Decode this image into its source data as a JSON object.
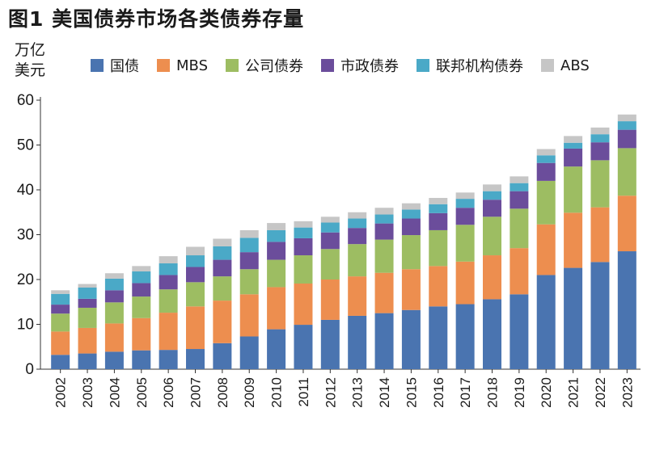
{
  "header": {
    "title": "图1  美国债券市场各类债券存量",
    "unit_line1": "万亿",
    "unit_line2": "美元"
  },
  "colors": {
    "国债": "#4a74b0",
    "MBS": "#ed8e4f",
    "公司债券": "#9dbd62",
    "市政债券": "#6b4d9b",
    "联邦机构债券": "#4aa9c7",
    "ABS": "#c6c6c6"
  },
  "chart_data": {
    "type": "bar",
    "stacked": true,
    "title": "图1  美国债券市场各类债券存量",
    "ylabel": "万亿美元",
    "ylim": [
      0,
      60
    ],
    "yticks": [
      0,
      10,
      20,
      30,
      40,
      50,
      60
    ],
    "legend_position": "top",
    "grid": false,
    "categories": [
      "2002",
      "2003",
      "2004",
      "2005",
      "2006",
      "2007",
      "2008",
      "2009",
      "2010",
      "2011",
      "2012",
      "2013",
      "2014",
      "2015",
      "2016",
      "2017",
      "2018",
      "2019",
      "2020",
      "2021",
      "2022",
      "2023"
    ],
    "series": [
      {
        "name": "国债",
        "values": [
          3.2,
          3.5,
          3.9,
          4.2,
          4.3,
          4.5,
          5.8,
          7.3,
          8.9,
          9.9,
          11.0,
          11.9,
          12.5,
          13.2,
          14.0,
          14.5,
          15.6,
          16.7,
          21.0,
          22.6,
          23.9,
          26.3
        ]
      },
      {
        "name": "MBS",
        "values": [
          5.2,
          5.7,
          6.3,
          7.2,
          8.3,
          9.5,
          9.5,
          9.4,
          9.4,
          9.2,
          9.0,
          8.8,
          9.0,
          9.1,
          9.0,
          9.5,
          9.8,
          10.3,
          11.3,
          12.3,
          12.2,
          12.4
        ]
      },
      {
        "name": "公司债券",
        "values": [
          4.0,
          4.5,
          4.7,
          4.8,
          5.2,
          5.4,
          5.4,
          5.6,
          6.1,
          6.3,
          6.8,
          7.2,
          7.4,
          7.6,
          8.0,
          8.2,
          8.6,
          8.8,
          9.7,
          10.3,
          10.5,
          10.6
        ]
      },
      {
        "name": "市政债券",
        "values": [
          2.0,
          2.0,
          2.7,
          3.0,
          3.2,
          3.4,
          3.7,
          3.8,
          4.0,
          3.8,
          3.7,
          3.6,
          3.6,
          3.7,
          3.8,
          3.8,
          3.8,
          3.9,
          4.0,
          4.0,
          4.0,
          4.1
        ]
      },
      {
        "name": "联邦机构债券",
        "values": [
          2.4,
          2.5,
          2.6,
          2.6,
          2.6,
          2.6,
          3.0,
          3.2,
          2.6,
          2.4,
          2.2,
          2.1,
          2.0,
          2.0,
          2.0,
          2.0,
          1.9,
          1.8,
          1.7,
          1.3,
          1.8,
          1.9
        ]
      },
      {
        "name": "ABS",
        "values": [
          0.8,
          0.8,
          1.2,
          1.2,
          1.6,
          1.9,
          1.7,
          1.7,
          1.6,
          1.4,
          1.3,
          1.4,
          1.5,
          1.4,
          1.4,
          1.4,
          1.5,
          1.5,
          1.4,
          1.5,
          1.5,
          1.5
        ]
      }
    ]
  }
}
